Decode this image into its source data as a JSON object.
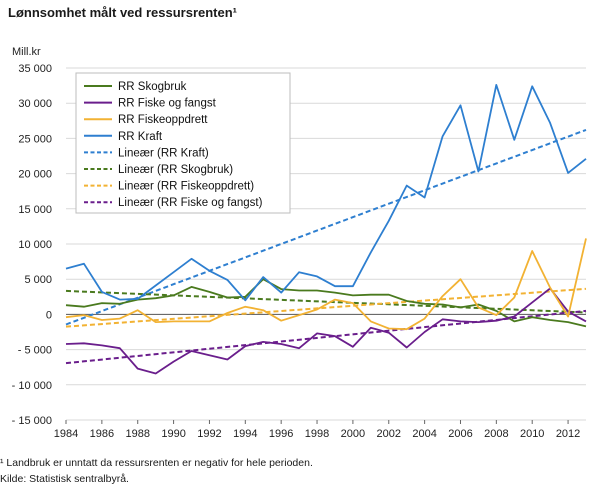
{
  "title": "Lønnsomhet målt ved ressursrenten¹",
  "footnote": "¹ Landbruk  er unntatt da ressursrenten er negativ for hele perioden.",
  "source": "Kilde: Statistisk sentralbyrå.",
  "colors": {
    "skogbruk": "#4a7a1e",
    "fiske": "#6a1e8c",
    "fiskeoppdrett": "#f2b233",
    "kraft": "#2e7fd0",
    "grid": "#d9d9d9",
    "zero_line": "#555555"
  },
  "chart_data": {
    "type": "line",
    "ylabel": "Mill.kr",
    "ylim": [
      -15000,
      35000
    ],
    "y_ticks": [
      35000,
      30000,
      25000,
      20000,
      15000,
      10000,
      5000,
      0,
      -5000,
      -10000,
      -15000
    ],
    "y_tick_labels": [
      "35 000",
      "30 000",
      "25 000",
      "20 000",
      "15 000",
      "10 000",
      "5 000",
      "0",
      "- 5 000",
      "- 10 000",
      "- 15 000"
    ],
    "x_ticks": [
      1984,
      1986,
      1988,
      1990,
      1992,
      1994,
      1996,
      1998,
      2000,
      2002,
      2004,
      2006,
      2008,
      2010,
      2012
    ],
    "x": [
      1984,
      1985,
      1986,
      1987,
      1988,
      1989,
      1990,
      1991,
      1992,
      1993,
      1994,
      1995,
      1996,
      1997,
      1998,
      1999,
      2000,
      2001,
      2002,
      2003,
      2004,
      2005,
      2006,
      2007,
      2008,
      2009,
      2010,
      2011,
      2012,
      2013
    ],
    "grid": true,
    "legend_position": "top-left",
    "series": [
      {
        "name": "RR Skogbruk",
        "color": "#4a7a1e",
        "dashed": false,
        "values": [
          1300,
          1100,
          1600,
          1500,
          2100,
          2300,
          2700,
          3900,
          3200,
          2400,
          2500,
          5000,
          3600,
          3400,
          3400,
          3100,
          2700,
          2800,
          2800,
          1900,
          1500,
          1400,
          1000,
          1400,
          500,
          -1000,
          -400,
          -800,
          -1100,
          -1700
        ]
      },
      {
        "name": "RR Fiske og fangst",
        "color": "#6a1e8c",
        "dashed": false,
        "values": [
          -4200,
          -4100,
          -4400,
          -4800,
          -7700,
          -8400,
          -6700,
          -5200,
          -5800,
          -6400,
          -4500,
          -3900,
          -4200,
          -4800,
          -2700,
          -3100,
          -4600,
          -1900,
          -2600,
          -4700,
          -2500,
          -700,
          -1000,
          -1100,
          -900,
          -300,
          1700,
          3700,
          400,
          -1000
        ]
      },
      {
        "name": "RR Fiskeoppdrett",
        "color": "#f2b233",
        "dashed": false,
        "values": [
          -400,
          -100,
          -800,
          -600,
          600,
          -1100,
          -1000,
          -1000,
          -1000,
          200,
          1100,
          600,
          -900,
          -100,
          700,
          2100,
          1600,
          -1000,
          -2000,
          -2100,
          -600,
          2600,
          5000,
          1000,
          -100,
          2400,
          9000,
          3800,
          -300,
          10800
        ]
      },
      {
        "name": "RR Kraft",
        "color": "#2e7fd0",
        "dashed": false,
        "values": [
          6500,
          7200,
          3200,
          2100,
          2200,
          4100,
          6000,
          7900,
          6200,
          4900,
          2000,
          5300,
          3100,
          6000,
          5400,
          4000,
          4000,
          8800,
          13300,
          18300,
          16600,
          25300,
          29700,
          20300,
          32600,
          24800,
          32400,
          27200,
          20100,
          22100
        ]
      },
      {
        "name": "Lineær (RR Kraft)",
        "color": "#2e7fd0",
        "dashed": true,
        "trend_from": "RR Kraft"
      },
      {
        "name": "Lineær (RR Skogbruk)",
        "color": "#4a7a1e",
        "dashed": true,
        "trend_from": "RR Skogbruk"
      },
      {
        "name": "Lineær (RR Fiskeoppdrett)",
        "color": "#f2b233",
        "dashed": true,
        "trend_from": "RR Fiskeoppdrett"
      },
      {
        "name": "Lineær (RR Fiske og fangst)",
        "color": "#6a1e8c",
        "dashed": true,
        "trend_from": "RR Fiske og fangst"
      }
    ]
  }
}
